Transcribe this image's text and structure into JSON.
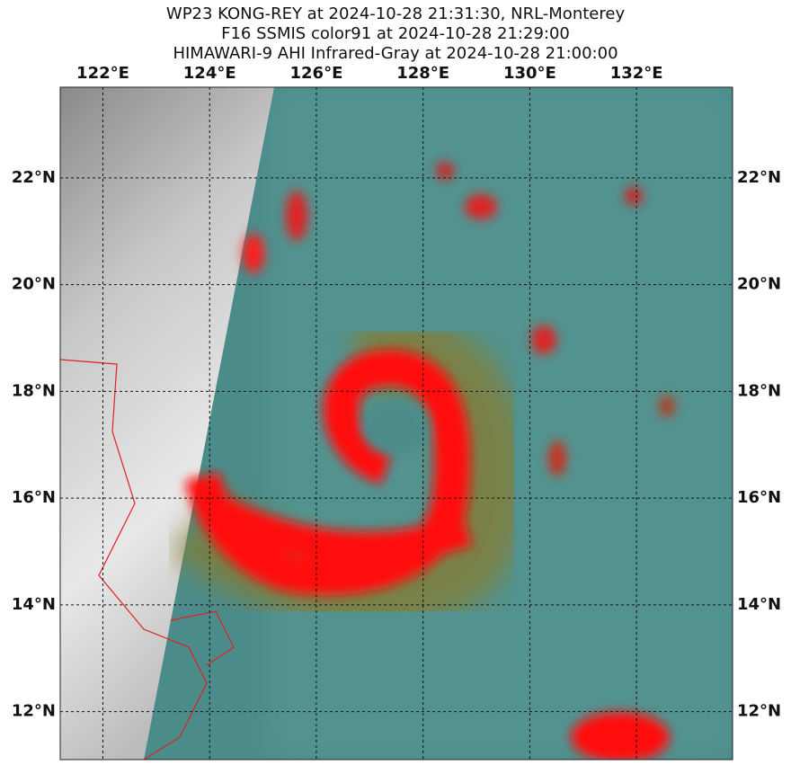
{
  "map": {
    "title": [
      "WP23 KONG-REY at 2024-10-28 21:31:30, NRL-Monterey",
      "F16 SSMIS color91 at 2024-10-28 21:29:00",
      "HIMAWARI-9 AHI Infrared-Gray at 2024-10-28 21:00:00"
    ],
    "lonlim": [
      121.2,
      133.8
    ],
    "latlim": [
      11.1,
      23.7
    ],
    "lon_ticks": [
      {
        "value": 122,
        "label": "122°E"
      },
      {
        "value": 124,
        "label": "124°E"
      },
      {
        "value": 126,
        "label": "126°E"
      },
      {
        "value": 128,
        "label": "128°E"
      },
      {
        "value": 130,
        "label": "130°E"
      },
      {
        "value": 132,
        "label": "132°E"
      }
    ],
    "lat_ticks": [
      {
        "value": 12,
        "label": "12°N"
      },
      {
        "value": 14,
        "label": "14°N"
      },
      {
        "value": 16,
        "label": "16°N"
      },
      {
        "value": 18,
        "label": "18°N"
      },
      {
        "value": 20,
        "label": "20°N"
      },
      {
        "value": 22,
        "label": "22°N"
      }
    ]
  }
}
